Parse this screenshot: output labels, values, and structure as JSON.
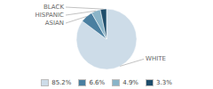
{
  "chart_data": {
    "type": "pie",
    "categories": [
      "WHITE",
      "ASIAN",
      "HISPANIC",
      "BLACK"
    ],
    "values": [
      85.2,
      6.6,
      4.9,
      3.3
    ],
    "value_labels": [
      "85.2%",
      "6.6%",
      "4.9%",
      "3.3%"
    ],
    "colors": [
      "#cddce8",
      "#4a7fa0",
      "#8ab4c8",
      "#1e4d6b"
    ],
    "legend": "bottom"
  }
}
